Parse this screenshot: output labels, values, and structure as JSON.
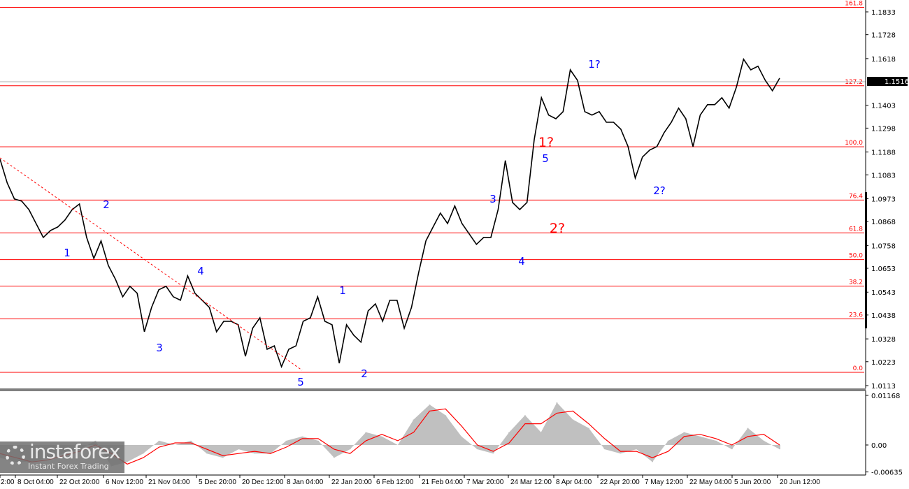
{
  "chart_data": [
    {
      "type": "line",
      "title": "",
      "yaxis": {
        "ticks": [
          "1.1833",
          "1.1728",
          "1.1618",
          "1.1403",
          "1.1298",
          "1.1188",
          "1.1083",
          "1.0973",
          "1.0868",
          "1.0758",
          "1.0653",
          "1.0543",
          "1.0438",
          "1.0328",
          "1.0223",
          "1.0113"
        ],
        "range": [
          1.0113,
          1.1833
        ]
      },
      "current_price": "1.1516",
      "xaxis": {
        "ticks": [
          "2:00",
          "8 Oct 04:00",
          "22 Oct 20:00",
          "6 Nov 12:00",
          "21 Nov 04:00",
          "5 Dec 20:00",
          "20 Dec 12:00",
          "8 Jan 04:00",
          "22 Jan 20:00",
          "6 Feb 12:00",
          "21 Feb 04:00",
          "7 Mar 20:00",
          "24 Mar 12:00",
          "8 Apr 04:00",
          "22 Apr 20:00",
          "7 May 12:00",
          "22 May 04:00",
          "5 Jun 20:00",
          "20 Jun 12:00"
        ]
      },
      "series_color": "#000000",
      "values": [
        1.1155,
        1.1046,
        1.0972,
        1.0962,
        1.0923,
        1.0859,
        1.0795,
        1.0827,
        1.0843,
        1.0875,
        1.0923,
        1.0949,
        1.0795,
        1.0698,
        1.0779,
        1.0666,
        1.0602,
        1.0522,
        1.057,
        1.0538,
        1.0361,
        1.0473,
        1.0554,
        1.057,
        1.0522,
        1.0506,
        1.0618,
        1.0538,
        1.0506,
        1.0473,
        1.0361,
        1.0409,
        1.0409,
        1.0393,
        1.0248,
        1.0377,
        1.0425,
        1.028,
        1.0296,
        1.02,
        1.028,
        1.0296,
        1.0409,
        1.0425,
        1.0522,
        1.0409,
        1.0393,
        1.0216,
        1.0393,
        1.0345,
        1.0313,
        1.0457,
        1.0489,
        1.0409,
        1.0506,
        1.0506,
        1.0377,
        1.0473,
        1.0634,
        1.0779,
        1.0843,
        1.0907,
        1.0859,
        1.094,
        1.0859,
        1.0811,
        1.0763,
        1.0795,
        1.0795,
        1.0923,
        1.1149,
        1.0956,
        1.0923,
        1.0956,
        1.1245,
        1.1438,
        1.1358,
        1.1341,
        1.1374,
        1.1566,
        1.1518,
        1.1374,
        1.1358,
        1.1374,
        1.1325,
        1.1325,
        1.1293,
        1.1213,
        1.1068,
        1.1165,
        1.1197,
        1.1213,
        1.1277,
        1.1325,
        1.139,
        1.1341,
        1.1213,
        1.1358,
        1.1406,
        1.1406,
        1.1438,
        1.139,
        1.1486,
        1.1615,
        1.1566,
        1.1583,
        1.1518,
        1.147,
        1.1528
      ],
      "fib_levels": [
        {
          "label": "161.8",
          "price": 1.1854
        },
        {
          "label": "127.2",
          "price": 1.1493
        },
        {
          "label": "100.0",
          "price": 1.1212
        },
        {
          "label": "76.4",
          "price": 1.0967
        },
        {
          "label": "61.8",
          "price": 1.0816
        },
        {
          "label": "50.0",
          "price": 1.0693
        },
        {
          "label": "38.2",
          "price": 1.0571
        },
        {
          "label": "23.6",
          "price": 1.042
        },
        {
          "label": "0.0",
          "price": 1.0174
        }
      ],
      "fib_color": "#ff0000",
      "wave_labels": [
        {
          "text": "1",
          "color": "#0000ff"
        },
        {
          "text": "2",
          "color": "#0000ff"
        },
        {
          "text": "3",
          "color": "#0000ff"
        },
        {
          "text": "4",
          "color": "#0000ff"
        },
        {
          "text": "5",
          "color": "#0000ff"
        },
        {
          "text": "1",
          "color": "#0000ff"
        },
        {
          "text": "2",
          "color": "#0000ff"
        },
        {
          "text": "3",
          "color": "#0000ff"
        },
        {
          "text": "4",
          "color": "#0000ff"
        },
        {
          "text": "5",
          "color": "#0000ff"
        },
        {
          "text": "1?",
          "color": "#ff0000"
        },
        {
          "text": "2?",
          "color": "#ff0000"
        },
        {
          "text": "1?",
          "color": "#0000ff"
        },
        {
          "text": "2?",
          "color": "#0000ff"
        }
      ]
    },
    {
      "type": "bar",
      "title": "",
      "yaxis": {
        "ticks": [
          "0.01168",
          "0.00",
          "-0.00635"
        ],
        "range": [
          -0.00635,
          0.01168
        ]
      },
      "histogram_color": "#c0c0c0",
      "signal_color": "#ff0000",
      "histogram": [
        -0.003,
        -0.004,
        -0.004,
        -0.003,
        -0.002,
        -0.001,
        0.001,
        -0.005,
        -0.004,
        -0.002,
        0.001,
        0.0,
        0.001,
        -0.002,
        -0.003,
        -0.001,
        -0.002,
        -0.002,
        0.001,
        0.002,
        0.001,
        -0.003,
        -0.001,
        0.003,
        0.002,
        0.0,
        0.006,
        0.0095,
        0.007,
        0.002,
        -0.001,
        -0.002,
        0.003,
        0.007,
        0.003,
        0.01,
        0.006,
        0.004,
        -0.001,
        -0.002,
        -0.001,
        -0.004,
        0.001,
        0.003,
        0.002,
        0.001,
        -0.001,
        0.004,
        0.001,
        -0.001
      ],
      "signal": [
        -0.002,
        -0.003,
        -0.004,
        -0.0035,
        -0.0025,
        -0.0015,
        0.0,
        -0.002,
        -0.0045,
        -0.003,
        -0.0005,
        0.0005,
        0.0005,
        -0.001,
        -0.0025,
        -0.002,
        -0.0015,
        -0.002,
        -0.0005,
        0.0015,
        0.0015,
        -0.001,
        -0.002,
        0.001,
        0.0025,
        0.001,
        0.003,
        0.008,
        0.0085,
        0.0045,
        0.0,
        -0.0015,
        0.0005,
        0.005,
        0.005,
        0.0075,
        0.008,
        0.005,
        0.0015,
        -0.0015,
        -0.0015,
        -0.003,
        -0.0015,
        0.002,
        0.0025,
        0.0015,
        0.0,
        0.002,
        0.0025,
        0.0
      ]
    }
  ],
  "branding": {
    "name": "instaforex",
    "tagline": "Instant Forex Trading"
  }
}
